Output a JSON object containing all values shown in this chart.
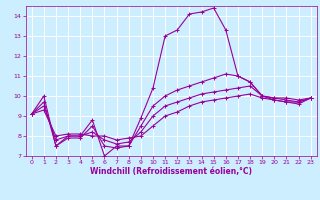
{
  "xlabel": "Windchill (Refroidissement éolien,°C)",
  "ylabel": "",
  "bg_color": "#cceeff",
  "grid_color": "#ffffff",
  "line_color": "#990099",
  "xlim": [
    -0.5,
    23.5
  ],
  "ylim": [
    7,
    14.5
  ],
  "x_ticks": [
    0,
    1,
    2,
    3,
    4,
    5,
    6,
    7,
    8,
    9,
    10,
    11,
    12,
    13,
    14,
    15,
    16,
    17,
    18,
    19,
    20,
    21,
    22,
    23
  ],
  "y_ticks": [
    7,
    8,
    9,
    10,
    11,
    12,
    13,
    14
  ],
  "curves": [
    {
      "x": [
        0,
        1,
        2,
        3,
        4,
        5,
        6,
        7,
        8,
        9,
        10,
        11,
        12,
        13,
        14,
        15,
        16,
        17,
        18,
        19,
        20,
        21,
        22,
        23
      ],
      "y": [
        9.1,
        10.0,
        7.5,
        8.0,
        8.0,
        8.8,
        7.0,
        7.5,
        7.5,
        8.9,
        10.4,
        13.0,
        13.3,
        14.1,
        14.2,
        14.4,
        13.3,
        11.0,
        10.7,
        10.0,
        9.9,
        9.9,
        9.8,
        9.9
      ]
    },
    {
      "x": [
        0,
        1,
        2,
        3,
        4,
        5,
        6,
        7,
        8,
        9,
        10,
        11,
        12,
        13,
        14,
        15,
        16,
        17,
        18,
        19,
        20,
        21,
        22,
        23
      ],
      "y": [
        9.1,
        9.7,
        7.5,
        7.9,
        7.9,
        8.5,
        7.5,
        7.4,
        7.5,
        8.5,
        9.5,
        10.0,
        10.3,
        10.5,
        10.7,
        10.9,
        11.1,
        11.0,
        10.7,
        10.0,
        9.8,
        9.7,
        9.7,
        9.9
      ]
    },
    {
      "x": [
        0,
        1,
        2,
        3,
        4,
        5,
        6,
        7,
        8,
        9,
        10,
        11,
        12,
        13,
        14,
        15,
        16,
        17,
        18,
        19,
        20,
        21,
        22,
        23
      ],
      "y": [
        9.1,
        9.5,
        7.8,
        8.0,
        8.0,
        8.2,
        7.8,
        7.6,
        7.7,
        8.2,
        9.0,
        9.5,
        9.7,
        9.9,
        10.1,
        10.2,
        10.3,
        10.4,
        10.5,
        10.0,
        9.9,
        9.8,
        9.7,
        9.9
      ]
    },
    {
      "x": [
        0,
        1,
        2,
        3,
        4,
        5,
        6,
        7,
        8,
        9,
        10,
        11,
        12,
        13,
        14,
        15,
        16,
        17,
        18,
        19,
        20,
        21,
        22,
        23
      ],
      "y": [
        9.1,
        9.3,
        8.0,
        8.1,
        8.1,
        8.0,
        8.0,
        7.8,
        7.9,
        8.0,
        8.5,
        9.0,
        9.2,
        9.5,
        9.7,
        9.8,
        9.9,
        10.0,
        10.1,
        9.9,
        9.8,
        9.7,
        9.6,
        9.9
      ]
    }
  ],
  "marker": "+",
  "markersize": 3,
  "linewidth": 0.8,
  "tick_fontsize": 4.5,
  "label_fontsize": 5.5,
  "label_fontweight": "bold"
}
